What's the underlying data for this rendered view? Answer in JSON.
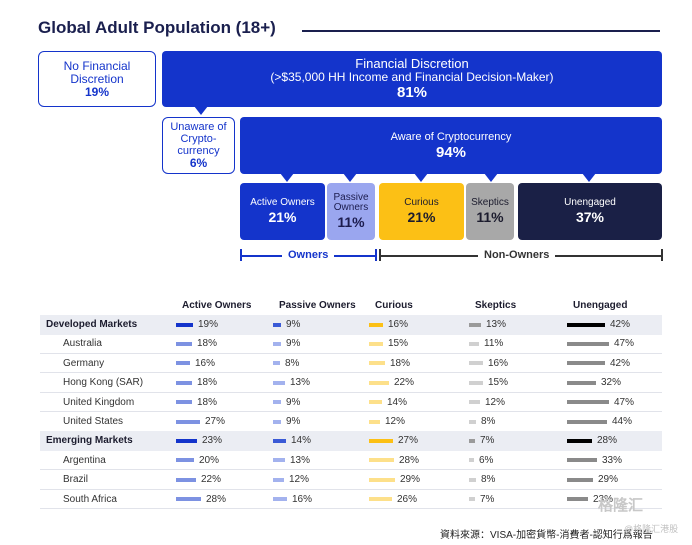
{
  "title": "Global Adult Population (18+)",
  "no_financial": {
    "label": "No Financial Discretion",
    "pct": "19%"
  },
  "financial": {
    "label": "Financial Discretion",
    "sub": "(>$35,000 HH Income and Financial Decision-Maker)",
    "pct": "81%"
  },
  "unaware": {
    "label": "Unaware of Crypto-currency",
    "pct": "6%"
  },
  "aware": {
    "label": "Aware of Cryptocurrency",
    "pct": "94%"
  },
  "segments": [
    {
      "label": "Active Owners",
      "pct": "21%",
      "bg": "#1434cb",
      "fg": "#ffffff"
    },
    {
      "label": "Passive Owners",
      "pct": "11%",
      "bg": "#9aa6ef",
      "fg": "#1c1c4e"
    },
    {
      "label": "Curious",
      "pct": "21%",
      "bg": "#fcc015",
      "fg": "#1c1c2e"
    },
    {
      "label": "Skeptics",
      "pct": "11%",
      "bg": "#a8a8a8",
      "fg": "#1c1c2e"
    },
    {
      "label": "Unengaged",
      "pct": "37%",
      "bg": "#1a2046",
      "fg": "#ffffff"
    }
  ],
  "groups": {
    "owners": "Owners",
    "non_owners": "Non-Owners"
  },
  "columns": [
    "Active Owners",
    "Passive Owners",
    "Curious",
    "Skeptics",
    "Unengaged"
  ],
  "rows": [
    {
      "name": "Developed Markets",
      "bold": true,
      "values": [
        19,
        9,
        16,
        13,
        42
      ]
    },
    {
      "name": "Australia",
      "bold": false,
      "values": [
        18,
        9,
        15,
        11,
        47
      ]
    },
    {
      "name": "Germany",
      "bold": false,
      "values": [
        16,
        8,
        18,
        16,
        42
      ]
    },
    {
      "name": "Hong Kong (SAR)",
      "bold": false,
      "values": [
        18,
        13,
        22,
        15,
        32
      ]
    },
    {
      "name": "United Kingdom",
      "bold": false,
      "values": [
        18,
        9,
        14,
        12,
        47
      ]
    },
    {
      "name": "United States",
      "bold": false,
      "values": [
        27,
        9,
        12,
        8,
        44
      ]
    },
    {
      "name": "Emerging Markets",
      "bold": true,
      "values": [
        23,
        14,
        27,
        7,
        28
      ]
    },
    {
      "name": "Argentina",
      "bold": false,
      "values": [
        20,
        13,
        28,
        6,
        33
      ]
    },
    {
      "name": "Brazil",
      "bold": false,
      "values": [
        22,
        12,
        29,
        8,
        29
      ]
    },
    {
      "name": "South Africa",
      "bold": false,
      "values": [
        28,
        16,
        26,
        7,
        23
      ]
    }
  ],
  "colors": {
    "bold": [
      "#1434cb",
      "#3a5ad6",
      "#fcc015",
      "#9a9a9a",
      "#000000"
    ],
    "light": [
      "#7d92e2",
      "#a3b2ee",
      "#fde08a",
      "#d0d0d0",
      "#8a8a8a"
    ]
  },
  "source": "資料來源：VISA-加密貨幣-消費者-認知行爲報告",
  "watermark": "格隆汇",
  "watermark2": "@格隆汇港股"
}
